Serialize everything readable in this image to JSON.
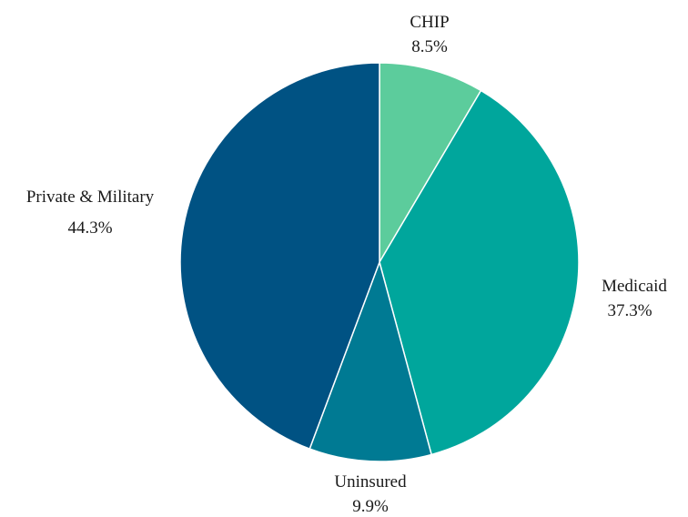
{
  "chart_data": {
    "type": "pie",
    "start_angle_deg": 0,
    "direction": "clockwise",
    "slices": [
      {
        "label": "CHIP",
        "value": 8.5,
        "value_label": "8.5%",
        "color": "#5ccc9c"
      },
      {
        "label": "Medicaid",
        "value": 37.3,
        "value_label": "37.3%",
        "color": "#00a69c"
      },
      {
        "label": "Uninsured",
        "value": 9.9,
        "value_label": "9.9%",
        "color": "#007a93"
      },
      {
        "label": "Private & Military",
        "value": 44.3,
        "value_label": "44.3%",
        "color": "#005283"
      }
    ]
  }
}
